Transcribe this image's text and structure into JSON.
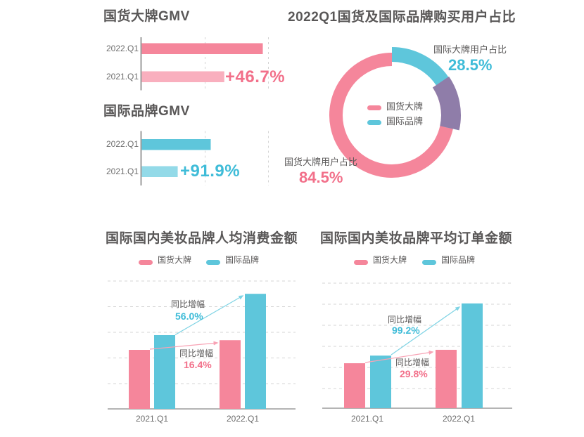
{
  "colors": {
    "pink": "#F5869B",
    "pink_light": "#F9AFBE",
    "pink_text": "#F2708A",
    "teal": "#5EC6DB",
    "teal_light": "#93DAE8",
    "teal_text": "#3FBCD8",
    "purple_overlap": "#8F7DA9",
    "title_gray": "#595757",
    "label_gray": "#6E6E6E",
    "grid": "#D4D4D4",
    "axis": "#9C9C9C",
    "arrow_pink": "#F8A3B5",
    "arrow_teal": "#7ED3E4"
  },
  "chart_data": [
    {
      "id": "gmv-domestic",
      "type": "bar",
      "orientation": "horizontal",
      "title": "国货大牌GMV",
      "categories": [
        "2022.Q1",
        "2021.Q1"
      ],
      "values": [
        146.7,
        100
      ],
      "growth_label": "+46.7%",
      "grid": true
    },
    {
      "id": "gmv-international",
      "type": "bar",
      "orientation": "horizontal",
      "title": "国际品牌GMV",
      "categories": [
        "2022.Q1",
        "2021.Q1"
      ],
      "values": [
        191.9,
        100
      ],
      "growth_label": "+91.9%",
      "grid": true
    },
    {
      "id": "user-share-donut",
      "type": "pie",
      "style": "donut",
      "title": "2022Q1国货及国际品牌购买用户占比",
      "slices": [
        {
          "label": "国货大牌用户占比",
          "value": 84.5,
          "value_label": "84.5%"
        },
        {
          "label": "国际大牌用户占比",
          "value": 28.5,
          "value_label": "28.5%"
        }
      ],
      "legend": [
        "国货大牌",
        "国际品牌"
      ],
      "legend_position": "center",
      "overlap_note": "slices sum to 113%, overlap arc shown in purple"
    },
    {
      "id": "per-capita-spend",
      "type": "bar",
      "title": "国际国内美妆品牌人均消费金额",
      "categories": [
        "2021.Q1",
        "2022.Q1"
      ],
      "series": [
        {
          "name": "国货大牌",
          "values": [
            100,
            116.4
          ],
          "growth_caption": "同比增幅",
          "growth_label": "16.4%"
        },
        {
          "name": "国际品牌",
          "values": [
            125,
            195
          ],
          "growth_caption": "同比增幅",
          "growth_label": "56.0%"
        }
      ],
      "grid": true,
      "legend_position": "top"
    },
    {
      "id": "avg-order-value",
      "type": "bar",
      "title": "国际国内美妆品牌平均订单金额",
      "categories": [
        "2021.Q1",
        "2022.Q1"
      ],
      "series": [
        {
          "name": "国货大牌",
          "values": [
            100,
            129.8
          ],
          "growth_caption": "同比增幅",
          "growth_label": "29.8%"
        },
        {
          "name": "国际品牌",
          "values": [
            117,
            233
          ],
          "growth_caption": "同比增幅",
          "growth_label": "99.2%"
        }
      ],
      "grid": true,
      "legend_position": "top"
    }
  ]
}
